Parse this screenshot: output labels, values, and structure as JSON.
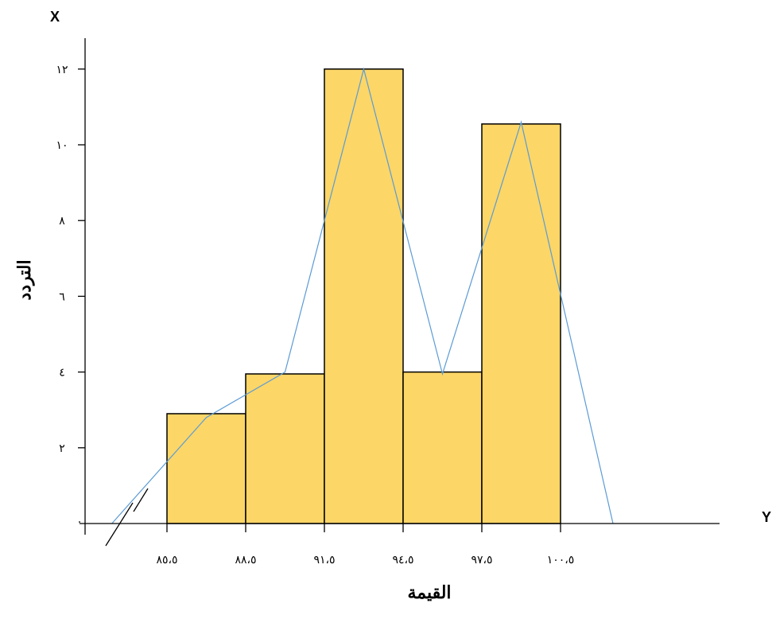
{
  "chart_data": {
    "type": "bar",
    "subtype": "histogram-with-frequency-polygon",
    "xlabel": "القيمة",
    "ylabel": "التردد",
    "x_axis_letter": "Y",
    "y_axis_letter": "X",
    "x_axis_break": true,
    "x_range": [
      82.5,
      104.5
    ],
    "ylim": [
      0,
      12
    ],
    "bin_edges": [
      85.5,
      88.5,
      91.5,
      94.5,
      97.5,
      100.5
    ],
    "x_tick_labels": [
      "٨٥،٥",
      "٨٨،٥",
      "٩١،٥",
      "٩٤،٥",
      "٩٧،٥",
      "١٠٠،٥"
    ],
    "y_ticks": [
      2,
      4,
      6,
      8,
      10,
      12
    ],
    "y_tick_labels": [
      "٢",
      "٤",
      "٦",
      "٨",
      "١٠",
      "١٢"
    ],
    "y_zero_label": "٠",
    "values": [
      2.9,
      3.95,
      12,
      4,
      10.55
    ],
    "polygon": {
      "x": [
        83.4,
        87,
        90,
        93,
        96,
        99,
        102.5
      ],
      "y": [
        0,
        2.8,
        4.0,
        12,
        3.95,
        10.6,
        0
      ]
    },
    "colors": {
      "bar_fill": "#fcd667",
      "bar_edge": "#000000",
      "polygon": "#5b9bd5"
    },
    "grid": false,
    "legend": "none"
  }
}
